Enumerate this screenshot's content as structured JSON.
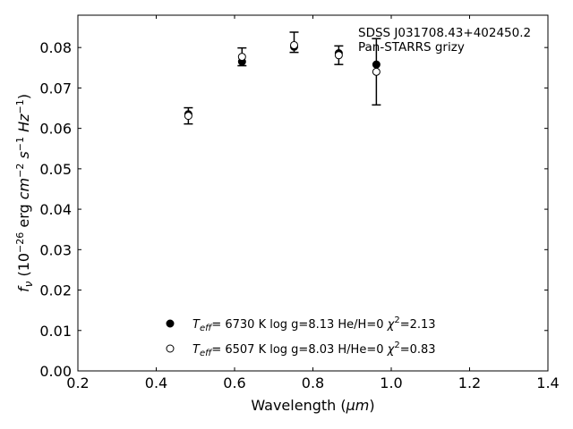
{
  "chart_data": {
    "type": "scatter",
    "title": "",
    "xlabel": "Wavelength (μm)",
    "ylabel": "f_ν (10^-26 erg cm^-2 s^-1 Hz^-1)",
    "xlim": [
      0.2,
      1.4
    ],
    "ylim": [
      0.0,
      0.088
    ],
    "x_ticks": [
      0.2,
      0.4,
      0.6,
      0.8,
      1.0,
      1.2,
      1.4
    ],
    "x_tick_labels": [
      "0.2",
      "0.4",
      "0.6",
      "0.8",
      "1.0",
      "1.2",
      "1.4"
    ],
    "y_ticks": [
      0.0,
      0.01,
      0.02,
      0.03,
      0.04,
      0.05,
      0.06,
      0.07,
      0.08
    ],
    "y_tick_labels": [
      "0.00",
      "0.01",
      "0.02",
      "0.03",
      "0.04",
      "0.05",
      "0.06",
      "0.07",
      "0.08"
    ],
    "grid": false,
    "annotations": [
      "SDSS J031708.43+402450.2",
      "Pan-STARRS grizy"
    ],
    "observed": {
      "x": [
        0.482,
        0.619,
        0.752,
        0.866,
        0.962
      ],
      "y": [
        0.0631,
        0.0777,
        0.0813,
        0.0781,
        0.074
      ],
      "yerr": [
        0.002,
        0.0022,
        0.0025,
        0.0023,
        0.0082
      ]
    },
    "series": [
      {
        "marker": "filled-circle",
        "legend_text": "T_eff=  6730 K  log g=8.13  He/H=0  χ²=2.13",
        "x": [
          0.482,
          0.619,
          0.752,
          0.866,
          0.962
        ],
        "y": [
          0.0635,
          0.0765,
          0.0802,
          0.0786,
          0.0758
        ]
      },
      {
        "marker": "open-circle",
        "legend_text": "T_eff=  6507 K  log g=8.03  H/He=0  χ²=0.83",
        "x": [
          0.482,
          0.619,
          0.752,
          0.866,
          0.962
        ],
        "y": [
          0.0631,
          0.0777,
          0.0806,
          0.0781,
          0.074
        ]
      }
    ],
    "legend_entries": [
      {
        "pre": "T",
        "sub": "eff",
        "mid": "=  6730 K  log g=8.13  He/H=0  ",
        "chi": "χ",
        "sup": "2",
        "post": "=2.13"
      },
      {
        "pre": "T",
        "sub": "eff",
        "mid": "=  6507 K  log g=8.03  H/He=0  ",
        "chi": "χ",
        "sup": "2",
        "post": "=0.83"
      }
    ],
    "colors": {
      "marker": "#000000",
      "axes": "#000000",
      "background": "#ffffff"
    }
  }
}
